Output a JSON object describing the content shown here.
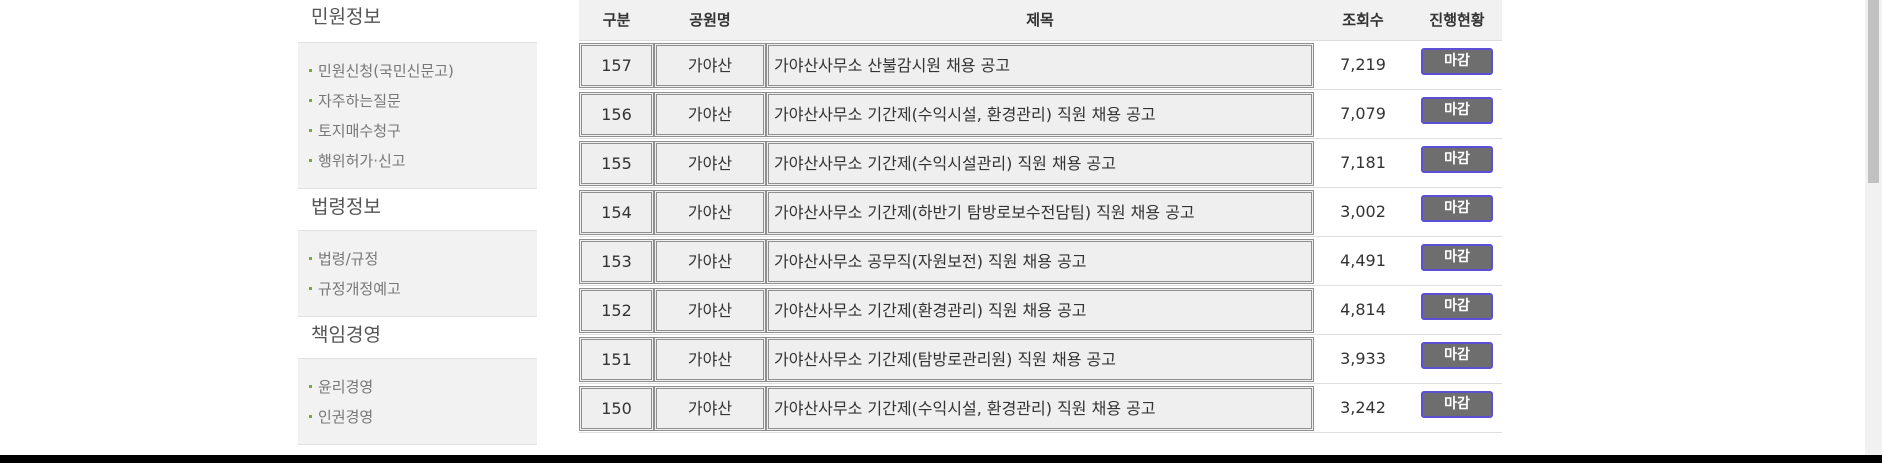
{
  "sidebar": {
    "sections": [
      {
        "title": "민원정보",
        "items": [
          "민원신청(국민신문고)",
          "자주하는질문",
          "토지매수청구",
          "행위허가·신고"
        ]
      },
      {
        "title": "법령정보",
        "items": [
          "법령/규정",
          "규정개정예고"
        ]
      },
      {
        "title": "책임경영",
        "items": [
          "윤리경영",
          "인권경영"
        ]
      }
    ]
  },
  "table": {
    "headers": {
      "no": "구분",
      "park": "공원명",
      "title": "제목",
      "views": "조회수",
      "status": "진행현황"
    },
    "rows": [
      {
        "no": "157",
        "park": "가야산",
        "title": "가야산사무소 산불감시원 채용 공고",
        "views": "7,219",
        "status": "마감"
      },
      {
        "no": "156",
        "park": "가야산",
        "title": "가야산사무소 기간제(수익시설, 환경관리) 직원 채용 공고",
        "views": "7,079",
        "status": "마감"
      },
      {
        "no": "155",
        "park": "가야산",
        "title": "가야산사무소 기간제(수익시설관리) 직원 채용 공고",
        "views": "7,181",
        "status": "마감"
      },
      {
        "no": "154",
        "park": "가야산",
        "title": "가야산사무소 기간제(하반기 탐방로보수전담팀) 직원 채용 공고",
        "views": "3,002",
        "status": "마감"
      },
      {
        "no": "153",
        "park": "가야산",
        "title": "가야산사무소 공무직(자원보전) 직원 채용 공고",
        "views": "4,491",
        "status": "마감"
      },
      {
        "no": "152",
        "park": "가야산",
        "title": "가야산사무소 기간제(환경관리) 직원 채용 공고",
        "views": "4,814",
        "status": "마감"
      },
      {
        "no": "151",
        "park": "가야산",
        "title": "가야산사무소 기간제(탐방로관리원) 직원 채용 공고",
        "views": "3,933",
        "status": "마감"
      },
      {
        "no": "150",
        "park": "가야산",
        "title": "가야산사무소 기간제(수익시설, 환경관리) 직원 채용 공고",
        "views": "3,242",
        "status": "마감"
      }
    ]
  },
  "colors": {
    "bullet": "#7aa53a",
    "badge_bg": "#6e6e6e",
    "badge_border": "#5b4fd6"
  }
}
